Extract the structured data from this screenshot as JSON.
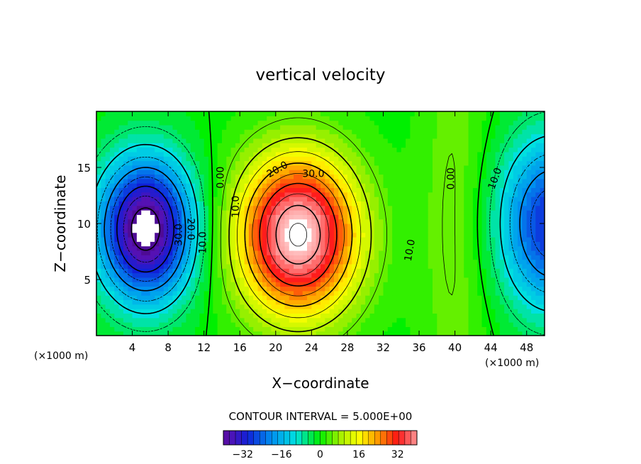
{
  "chart_data": {
    "type": "heatmap",
    "subtype": "filled-contour",
    "title": "vertical velocity",
    "xlabel": "X−coordinate",
    "ylabel": "Z−coordinate",
    "x_unit_left": "(×1000 m)",
    "x_unit_right": "(×1000 m)",
    "xlim": [
      0,
      50
    ],
    "ylim": [
      0,
      20
    ],
    "x_ticks": [
      4,
      8,
      12,
      16,
      20,
      24,
      28,
      32,
      36,
      40,
      44,
      48
    ],
    "x_tick_labels": [
      "4",
      "8",
      "12",
      "16",
      "20",
      "24",
      "28",
      "32",
      "36",
      "40",
      "44",
      "48"
    ],
    "y_ticks": [
      5,
      10,
      15
    ],
    "y_tick_labels": [
      "5",
      "10",
      "15"
    ],
    "contour_interval_text": "CONTOUR INTERVAL = 5.000E+00",
    "contour_interval": 5,
    "colorbar": {
      "min": -40,
      "max": 40,
      "ticks": [
        -32,
        -16,
        0,
        16,
        32
      ],
      "tick_labels": [
        "−32",
        "−16",
        "0",
        "16",
        "32"
      ]
    },
    "features": [
      {
        "name": "downdraft",
        "center": [
          5.5,
          9.5
        ],
        "peak": -40
      },
      {
        "name": "updraft",
        "center": [
          22.5,
          9.0
        ],
        "peak": 45
      },
      {
        "name": "right-edge-downdraft",
        "center": [
          50,
          10
        ],
        "peak": -30
      }
    ],
    "contour_labels": [
      {
        "text": "0.00",
        "x": 13.9,
        "z": 14.1,
        "rotate": -90
      },
      {
        "text": "10.0",
        "x": 15.6,
        "z": 11.5,
        "rotate": -90
      },
      {
        "text": "20.0",
        "x": 20.2,
        "z": 14.8,
        "rotate": -30
      },
      {
        "text": "30.0",
        "x": 24.2,
        "z": 14.4,
        "rotate": 0
      },
      {
        "text": "10.0",
        "x": 35.0,
        "z": 7.6,
        "rotate": -80
      },
      {
        "text": "0.00",
        "x": 39.6,
        "z": 14.0,
        "rotate": -90
      },
      {
        "text": "10.0",
        "x": 44.5,
        "z": 14.0,
        "rotate": -70
      },
      {
        "text": "30.0",
        "x": 9.2,
        "z": 9.0,
        "rotate": -90
      },
      {
        "text": "20.0",
        "x": 10.5,
        "z": 9.5,
        "rotate": 90
      },
      {
        "text": "10.0",
        "x": 11.9,
        "z": 8.3,
        "rotate": -90
      }
    ]
  }
}
